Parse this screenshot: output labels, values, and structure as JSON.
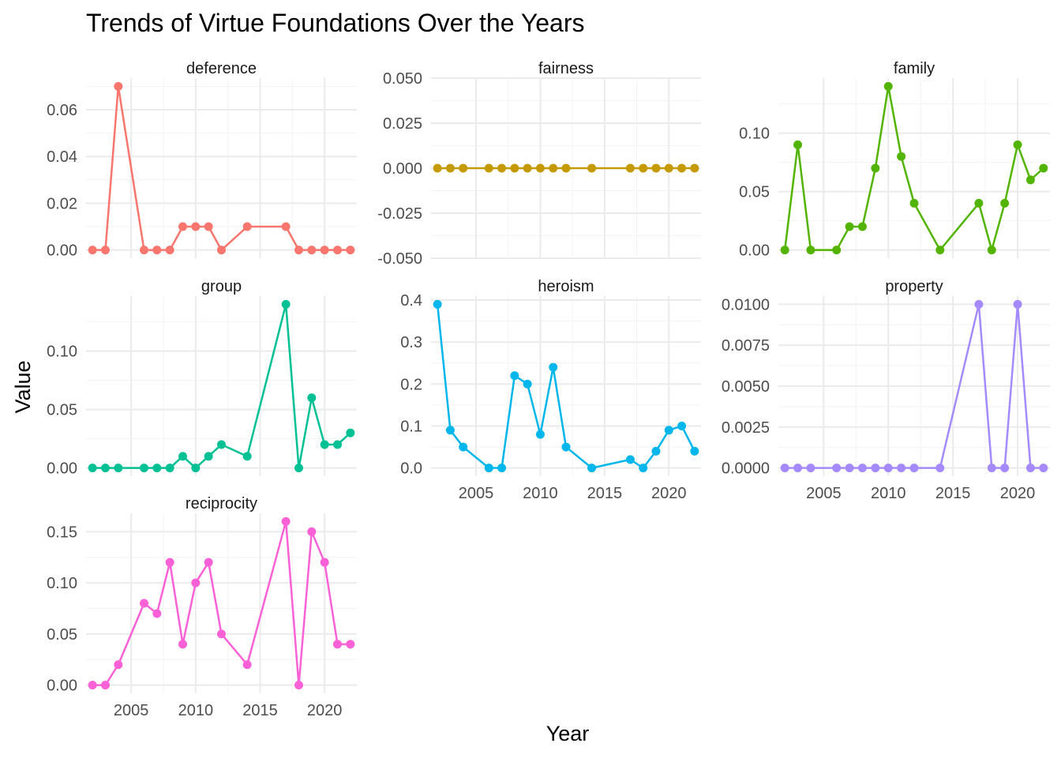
{
  "chart_data": {
    "type": "line",
    "title": "Trends of Virtue Foundations Over the Years",
    "xlabel": "Year",
    "ylabel": "Value",
    "x_ticks": [
      2005,
      2010,
      2015,
      2020
    ],
    "xlim": [
      2001.5,
      2022.5
    ],
    "grid": true,
    "legend": "none",
    "panels": [
      {
        "name": "deference",
        "color": "#F8766D",
        "ylim": [
          -0.0035,
          0.0735
        ],
        "y_ticks": [
          0.0,
          0.02,
          0.04,
          0.06
        ],
        "y_tick_labels": [
          "0.00",
          "0.02",
          "0.04",
          "0.06"
        ],
        "x": [
          2002,
          2003,
          2004,
          2006,
          2007,
          2008,
          2009,
          2010,
          2011,
          2012,
          2014,
          2017,
          2018,
          2019,
          2020,
          2021,
          2022
        ],
        "y": [
          0,
          0,
          0.07,
          0,
          0,
          0,
          0.01,
          0.01,
          0.01,
          0,
          0.01,
          0.01,
          0,
          0,
          0,
          0,
          0
        ]
      },
      {
        "name": "fairness",
        "color": "#C49A00",
        "ylim": [
          -0.05,
          0.05
        ],
        "y_ticks": [
          -0.05,
          -0.025,
          0.0,
          0.025,
          0.05
        ],
        "y_tick_labels": [
          "-0.050",
          "-0.025",
          "0.000",
          "0.025",
          "0.050"
        ],
        "x": [
          2002,
          2003,
          2004,
          2006,
          2007,
          2008,
          2009,
          2010,
          2011,
          2012,
          2014,
          2017,
          2018,
          2019,
          2020,
          2021,
          2022
        ],
        "y": [
          0,
          0,
          0,
          0,
          0,
          0,
          0,
          0,
          0,
          0,
          0,
          0,
          0,
          0,
          0,
          0,
          0
        ]
      },
      {
        "name": "family",
        "color": "#53B400",
        "ylim": [
          -0.007,
          0.147
        ],
        "y_ticks": [
          0.0,
          0.05,
          0.1
        ],
        "y_tick_labels": [
          "0.00",
          "0.05",
          "0.10"
        ],
        "x": [
          2002,
          2003,
          2004,
          2006,
          2007,
          2008,
          2009,
          2010,
          2011,
          2012,
          2014,
          2017,
          2018,
          2019,
          2020,
          2021,
          2022
        ],
        "y": [
          0,
          0.09,
          0,
          0,
          0.02,
          0.02,
          0.07,
          0.14,
          0.08,
          0.04,
          0,
          0.04,
          0,
          0.04,
          0.09,
          0.06,
          0.07
        ]
      },
      {
        "name": "group",
        "color": "#00C094",
        "ylim": [
          -0.007,
          0.147
        ],
        "y_ticks": [
          0.0,
          0.05,
          0.1
        ],
        "y_tick_labels": [
          "0.00",
          "0.05",
          "0.10"
        ],
        "x": [
          2002,
          2003,
          2004,
          2006,
          2007,
          2008,
          2009,
          2010,
          2011,
          2012,
          2014,
          2017,
          2018,
          2019,
          2020,
          2021,
          2022
        ],
        "y": [
          0,
          0,
          0,
          0,
          0,
          0,
          0.01,
          0,
          0.01,
          0.02,
          0.01,
          0.14,
          0,
          0.06,
          0.02,
          0.02,
          0.03
        ]
      },
      {
        "name": "heroism",
        "color": "#00B6EB",
        "ylim": [
          -0.0195,
          0.4095
        ],
        "y_ticks": [
          0.0,
          0.1,
          0.2,
          0.3,
          0.4
        ],
        "y_tick_labels": [
          "0.0",
          "0.1",
          "0.2",
          "0.3",
          "0.4"
        ],
        "x": [
          2002,
          2003,
          2004,
          2006,
          2007,
          2008,
          2009,
          2010,
          2011,
          2012,
          2014,
          2017,
          2018,
          2019,
          2020,
          2021,
          2022
        ],
        "y": [
          0.39,
          0.09,
          0.05,
          0,
          0,
          0.22,
          0.2,
          0.08,
          0.24,
          0.05,
          0,
          0.02,
          0,
          0.04,
          0.09,
          0.1,
          0.04
        ]
      },
      {
        "name": "property",
        "color": "#A58AFF",
        "ylim": [
          -0.0005,
          0.0105
        ],
        "y_ticks": [
          0.0,
          0.0025,
          0.005,
          0.0075,
          0.01
        ],
        "y_tick_labels": [
          "0.0000",
          "0.0025",
          "0.0050",
          "0.0075",
          "0.0100"
        ],
        "x": [
          2002,
          2003,
          2004,
          2006,
          2007,
          2008,
          2009,
          2010,
          2011,
          2012,
          2014,
          2017,
          2018,
          2019,
          2020,
          2021,
          2022
        ],
        "y": [
          0,
          0,
          0,
          0,
          0,
          0,
          0,
          0,
          0,
          0,
          0,
          0.01,
          0,
          0,
          0.01,
          0,
          0
        ]
      },
      {
        "name": "reciprocity",
        "color": "#FB61D7",
        "ylim": [
          -0.008,
          0.168
        ],
        "y_ticks": [
          0.0,
          0.05,
          0.1,
          0.15
        ],
        "y_tick_labels": [
          "0.00",
          "0.05",
          "0.10",
          "0.15"
        ],
        "x": [
          2002,
          2003,
          2004,
          2006,
          2007,
          2008,
          2009,
          2010,
          2011,
          2012,
          2014,
          2017,
          2018,
          2019,
          2020,
          2021,
          2022
        ],
        "y": [
          0,
          0,
          0.02,
          0.08,
          0.07,
          0.12,
          0.04,
          0.1,
          0.12,
          0.05,
          0.02,
          0.16,
          0,
          0.15,
          0.12,
          0.04,
          0.04
        ]
      }
    ]
  }
}
